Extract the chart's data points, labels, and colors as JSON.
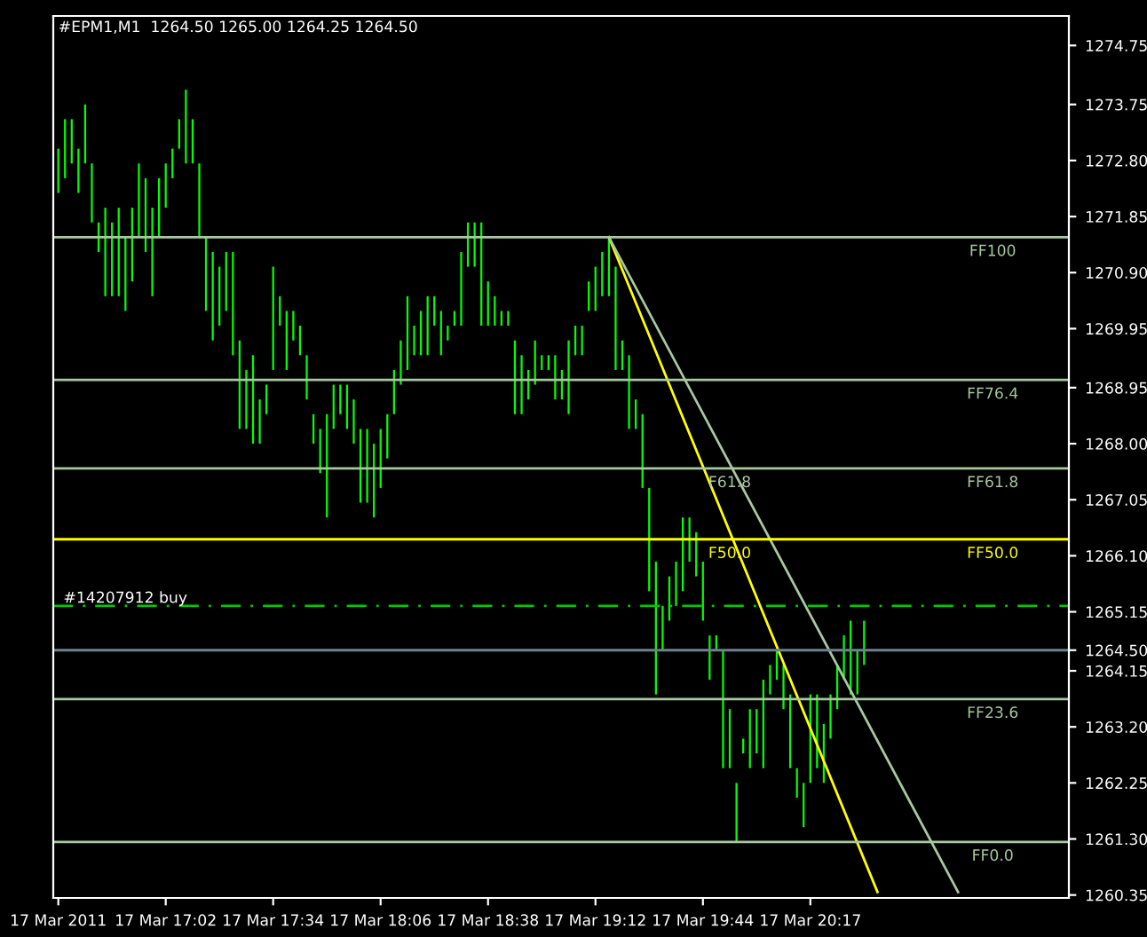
{
  "chart_data": {
    "type": "bar",
    "title": "#EPM1,M1  1264.50 1265.00 1264.25 1264.50",
    "categories": [
      "17 Mar 2011",
      null,
      null,
      null,
      null,
      null,
      null,
      null,
      null,
      null,
      null,
      null,
      null,
      null,
      null,
      null,
      "17 Mar 17:02",
      null,
      null,
      null,
      null,
      null,
      null,
      null,
      null,
      null,
      null,
      null,
      null,
      null,
      null,
      null,
      "17 Mar 17:34",
      null,
      null,
      null,
      null,
      null,
      null,
      null,
      null,
      null,
      null,
      null,
      null,
      null,
      null,
      null,
      "17 Mar 18:06",
      null,
      null,
      null,
      null,
      null,
      null,
      null,
      null,
      null,
      null,
      null,
      null,
      null,
      null,
      null,
      "17 Mar 18:38",
      null,
      null,
      null,
      null,
      null,
      null,
      null,
      null,
      null,
      null,
      null,
      null,
      null,
      null,
      null,
      "17 Mar 19:12",
      null,
      null,
      null,
      null,
      null,
      null,
      null,
      null,
      null,
      null,
      null,
      null,
      null,
      null,
      null,
      "17 Mar 19:44",
      null,
      null,
      null,
      null,
      null,
      null,
      null,
      null,
      null,
      null,
      null,
      null,
      null,
      null,
      null,
      "17 Mar 20:17",
      null,
      null,
      null,
      null,
      null,
      null,
      null,
      null,
      null,
      null,
      null,
      null,
      null,
      null,
      null,
      null,
      null,
      null,
      null,
      null,
      null,
      null,
      null,
      null,
      null,
      null,
      null,
      null,
      null,
      null,
      null,
      null,
      null,
      null,
      null,
      null,
      null,
      null
    ],
    "color": "#00ff00",
    "values": [
      0.75,
      1.0,
      0.75,
      0.75,
      1.0,
      1.0,
      0.5,
      1.5,
      1.25,
      1.5,
      1.25,
      1.25,
      1.25,
      1.25,
      1.5,
      1.0,
      0.75,
      0.5,
      0.5,
      1.25,
      0.75,
      1.25,
      1.25,
      1.5,
      1.0,
      1.0,
      1.75,
      1.5,
      1.0,
      1.5,
      0.75,
      0.5,
      1.75,
      0.5,
      1.0,
      0.5,
      0.5,
      0.75,
      0.5,
      0.75,
      1.75,
      0.75,
      0.5,
      0.75,
      0.75,
      1.25,
      1.25,
      1.25,
      1.0,
      0.75,
      0.75,
      0.75,
      1.25,
      0.5,
      0.75,
      1.0,
      0.5,
      0.75,
      0.25,
      0.25,
      1.25,
      0.75,
      0.75,
      1.75,
      0.75,
      0.5,
      0.25,
      0.25,
      1.25,
      1.0,
      0.5,
      0.75,
      0.25,
      0.25,
      0.75,
      0.5,
      1.25,
      0.5,
      0.5,
      0.5,
      0.75,
      0.75,
      1.0,
      1.75,
      0.5,
      1.25,
      0.5,
      1.25,
      1.75,
      2.25,
      0.75,
      0.75,
      0.75,
      1.25,
      0.75,
      0.75,
      1.0,
      0.75,
      0.25,
      2.0,
      1.0,
      1.0,
      0.25,
      1.0,
      0.75,
      1.5,
      0.5,
      0.5,
      0.75,
      1.25,
      0.5,
      0.75,
      1.5,
      1.25,
      1.0,
      0.75,
      0.75,
      0.75,
      1.25,
      0.75,
      0.75,
      null,
      null,
      null,
      null,
      null,
      null,
      null,
      null,
      null,
      null,
      null,
      null,
      null,
      null,
      null,
      null,
      null,
      null,
      null,
      null,
      null,
      null,
      null,
      null,
      null,
      null,
      null,
      null,
      null,
      null
    ],
    "base": [
      1272.25,
      1272.5,
      1272.75,
      1272.25,
      1272.75,
      1271.75,
      1271.25,
      1270.5,
      1270.5,
      1270.5,
      1270.25,
      1270.75,
      1271.5,
      1271.25,
      1270.5,
      1271.5,
      1272.0,
      1272.5,
      1273.0,
      1272.75,
      1272.75,
      1271.5,
      1270.25,
      1269.75,
      1270.0,
      1270.25,
      1269.5,
      1268.25,
      1268.25,
      1268.0,
      1268.0,
      1268.5,
      1269.25,
      1270.0,
      1269.25,
      1269.75,
      1269.5,
      1268.75,
      1268.0,
      1267.5,
      1266.75,
      1268.25,
      1268.5,
      1268.25,
      1268.0,
      1267.0,
      1267.0,
      1266.75,
      1267.25,
      1267.75,
      1268.5,
      1269.0,
      1269.25,
      1269.5,
      1269.5,
      1269.5,
      1270.0,
      1269.5,
      1269.75,
      1270.0,
      1270.0,
      1271.0,
      1271.0,
      1270.0,
      1270.0,
      1270.0,
      1270.0,
      1270.0,
      1268.5,
      1268.5,
      1268.75,
      1269.0,
      1269.25,
      1269.25,
      1268.75,
      1268.75,
      1268.5,
      1269.5,
      1269.5,
      1270.25,
      1270.25,
      1270.5,
      1270.5,
      1269.25,
      1269.25,
      1268.25,
      1268.25,
      1267.25,
      1265.5,
      1263.75,
      1264.5,
      1265.0,
      1265.25,
      1265.5,
      1266.0,
      1265.75,
      1265.0,
      1264.0,
      1264.5,
      1262.5,
      1262.5,
      1261.25,
      1262.75,
      1262.5,
      1262.75,
      1262.5,
      1263.75,
      1264.0,
      1263.5,
      1262.5,
      1262.0,
      1261.5,
      1262.25,
      1262.5,
      1262.25,
      1263.0,
      1263.5,
      1264.0,
      1263.75,
      1263.75,
      1264.25,
      null,
      null,
      null,
      null,
      null,
      null,
      null,
      null,
      null,
      null,
      null,
      null,
      null,
      null,
      null,
      null,
      null,
      null,
      null,
      null,
      null,
      null,
      null,
      null,
      null,
      null,
      null,
      null,
      null,
      null
    ],
    "series": [
      {
        "type": "line",
        "color": "#ffff00",
        "values": [
          null,
          null,
          null,
          null,
          null,
          null,
          null,
          null,
          null,
          null,
          null,
          null,
          null,
          null,
          null,
          null,
          null,
          null,
          null,
          null,
          null,
          null,
          null,
          null,
          null,
          null,
          null,
          null,
          null,
          null,
          null,
          null,
          null,
          null,
          null,
          null,
          null,
          null,
          null,
          null,
          null,
          null,
          null,
          null,
          null,
          null,
          null,
          null,
          null,
          null,
          null,
          null,
          null,
          null,
          null,
          null,
          null,
          null,
          null,
          null,
          null,
          null,
          null,
          null,
          null,
          null,
          null,
          null,
          null,
          null,
          null,
          null,
          null,
          null,
          null,
          null,
          null,
          null,
          null,
          null,
          null,
          null,
          1271.5,
          null,
          null,
          null,
          null,
          null,
          null,
          null,
          null,
          null,
          null,
          null,
          null,
          null,
          null,
          null,
          null,
          null,
          null,
          null,
          null,
          null,
          null,
          null,
          null,
          null,
          null,
          null,
          null,
          null,
          null,
          null,
          null,
          null,
          null,
          null,
          null,
          null,
          null,
          null,
          1260.4,
          null,
          null,
          null,
          null,
          null,
          null,
          null,
          null,
          null,
          null,
          null,
          null,
          null,
          null,
          null,
          null,
          null,
          null,
          null,
          null,
          null,
          null,
          null,
          null,
          null,
          null,
          null,
          null
        ]
      },
      {
        "type": "line",
        "color": "#a8c8a0",
        "values": [
          null,
          null,
          null,
          null,
          null,
          null,
          null,
          null,
          null,
          null,
          null,
          null,
          null,
          null,
          null,
          null,
          null,
          null,
          null,
          null,
          null,
          null,
          null,
          null,
          null,
          null,
          null,
          null,
          null,
          null,
          null,
          null,
          null,
          null,
          null,
          null,
          null,
          null,
          null,
          null,
          null,
          null,
          null,
          null,
          null,
          null,
          null,
          null,
          null,
          null,
          null,
          null,
          null,
          null,
          null,
          null,
          null,
          null,
          null,
          null,
          null,
          null,
          null,
          null,
          null,
          null,
          null,
          null,
          null,
          null,
          null,
          null,
          null,
          null,
          null,
          null,
          null,
          null,
          null,
          null,
          null,
          null,
          1271.5,
          null,
          null,
          null,
          null,
          null,
          null,
          null,
          null,
          null,
          null,
          null,
          null,
          null,
          null,
          null,
          null,
          null,
          null,
          null,
          null,
          null,
          null,
          null,
          null,
          null,
          null,
          null,
          null,
          null,
          null,
          null,
          null,
          null,
          null,
          null,
          null,
          null,
          null,
          null,
          null,
          null,
          null,
          null,
          null,
          null,
          null,
          null,
          null,
          null,
          null,
          null,
          1260.4,
          null,
          null,
          null,
          null,
          null,
          null,
          null,
          null,
          null,
          null,
          null,
          null,
          null,
          null,
          null,
          null
        ]
      }
    ],
    "ylim": [
      1260.3,
      1275.25
    ],
    "yticks": [
      1274.75,
      1273.75,
      {
        "value": 1272.8,
        "label": "1272.80"
      },
      1271.85,
      {
        "value": 1270.9,
        "label": "1270.90"
      },
      1269.95,
      1268.95,
      {
        "value": 1268.0,
        "label": "1268.00"
      },
      1267.05,
      {
        "value": 1266.1,
        "label": "1266.10"
      },
      1265.15,
      {
        "value": 1264.5,
        "label": "1264.50"
      },
      1264.15,
      {
        "value": 1263.2,
        "label": "1263.20"
      },
      1262.25,
      {
        "value": 1261.3,
        "label": "1261.30"
      },
      1260.35
    ],
    "ref_lines": [
      {
        "axis": "y",
        "value": 1271.5,
        "label": "FF100",
        "color": "#a8c8a0",
        "line_style": "solid"
      },
      {
        "axis": "y",
        "value": 1269.08,
        "label": "FF76.4",
        "color": "#a8c8a0",
        "line_style": "solid"
      },
      {
        "axis": "y",
        "value": 1267.58,
        "label": "FF61.8",
        "color": "#a8c8a0",
        "line_style": "solid"
      },
      {
        "axis": "y",
        "value": 1266.38,
        "label": "FF50.0",
        "color": "#ffff00",
        "line_style": "solid"
      },
      {
        "axis": "y",
        "value": 1263.67,
        "label": "FF23.6",
        "color": "#a8c8a0",
        "line_style": "solid"
      },
      {
        "axis": "y",
        "value": 1261.25,
        "label": "FF0.0",
        "color": "#a8c8a0",
        "line_style": "solid"
      },
      {
        "axis": "y",
        "value": 1265.25,
        "label": "#14207912 buy",
        "color": "#00c800",
        "line_style": "dashed"
      },
      {
        "axis": "y",
        "value": 1264.5,
        "color": "#708090",
        "line_style": "solid"
      }
    ],
    "annotations": [
      {
        "text": "F61.8",
        "y": 1267.58
      },
      {
        "text": "F50.0",
        "y": 1266.38
      }
    ],
    "grid": false,
    "legend": false
  }
}
